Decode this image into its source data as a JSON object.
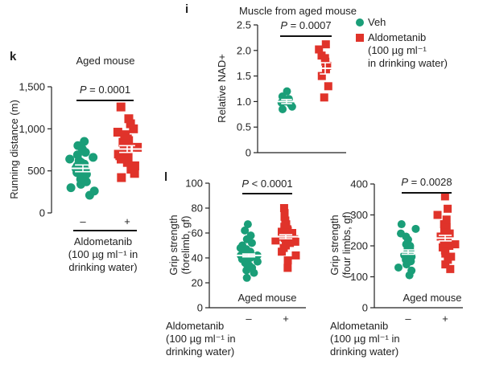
{
  "colors": {
    "veh": "#1a9e78",
    "aldo": "#e0332a",
    "axis": "#222222"
  },
  "chart_data": [
    {
      "panel_label": "k",
      "type": "scatter",
      "title": "Aged mouse",
      "ylabel": "Running distance (m)",
      "ylim": [
        0,
        1500
      ],
      "yticks": [
        0,
        500,
        1000,
        1500
      ],
      "ytick_labels": [
        "0",
        "500",
        "1,000",
        "1,500"
      ],
      "categories": [
        "–",
        "+"
      ],
      "x_title_lines": [
        "Aldometanib",
        "(100 µg ml⁻¹ in",
        "drinking water)"
      ],
      "p_text": [
        "P",
        " = 0.0001"
      ],
      "series": [
        {
          "group": "veh",
          "mean": 530,
          "sem": 40,
          "values": [
            210,
            260,
            300,
            340,
            370,
            400,
            420,
            440,
            460,
            480,
            500,
            510,
            520,
            530,
            540,
            550,
            560,
            580,
            600,
            620,
            640,
            660,
            690,
            720,
            760,
            800,
            850
          ]
        },
        {
          "group": "aldo",
          "mean": 760,
          "sem": 40,
          "values": [
            420,
            470,
            520,
            560,
            600,
            620,
            640,
            660,
            680,
            700,
            720,
            740,
            760,
            780,
            800,
            820,
            840,
            860,
            880,
            900,
            930,
            960,
            1000,
            1060,
            1120,
            1260
          ]
        }
      ]
    },
    {
      "panel_label": "i",
      "type": "scatter",
      "title": "Muscle from aged mouse",
      "ylabel": "Relative NAD+",
      "ylim": [
        0,
        2.5
      ],
      "yticks": [
        0,
        0.5,
        1.0,
        1.5,
        2.0,
        2.5
      ],
      "ytick_labels": [
        "0",
        "0.5",
        "1.0",
        "1.5",
        "2.0",
        "2.5"
      ],
      "categories": [],
      "p_text": [
        "P",
        " = 0.0007"
      ],
      "series": [
        {
          "group": "veh",
          "mean": 1.0,
          "sem": 0.04,
          "values": [
            0.85,
            0.9,
            0.95,
            0.98,
            1.0,
            1.02,
            1.05,
            1.1,
            1.2
          ]
        },
        {
          "group": "aldo",
          "mean": 1.65,
          "sem": 0.11,
          "values": [
            1.08,
            1.3,
            1.5,
            1.62,
            1.7,
            1.78,
            1.85,
            1.9,
            2.02,
            2.12
          ]
        }
      ],
      "legend": [
        {
          "group": "veh",
          "text": [
            "Veh"
          ]
        },
        {
          "group": "aldo",
          "text": [
            "Aldometanib",
            "(100 µg ml⁻¹",
            "in drinking water)"
          ]
        }
      ]
    },
    {
      "panel_label": "l",
      "type": "scatter",
      "title": "Aged mouse",
      "ylabel": [
        "Grip strength",
        "(forelimb, gf)"
      ],
      "ylim": [
        0,
        100
      ],
      "yticks": [
        0,
        20,
        40,
        60,
        80,
        100
      ],
      "ytick_labels": [
        "0",
        "20",
        "40",
        "60",
        "80",
        "100"
      ],
      "categories": [
        "–",
        "+"
      ],
      "x_title_lines": [
        "Aldometanib",
        "(100 µg ml⁻¹ in",
        "drinking water)"
      ],
      "p_text": [
        "P",
        " < 0.0001"
      ],
      "series": [
        {
          "group": "veh",
          "mean": 42,
          "sem": 1.2,
          "values": [
            24,
            28,
            30,
            32,
            34,
            35,
            36,
            37,
            38,
            39,
            40,
            40,
            41,
            42,
            42,
            43,
            44,
            45,
            46,
            47,
            48,
            50,
            52,
            55,
            58,
            62,
            67
          ]
        },
        {
          "group": "aldo",
          "mean": 57,
          "sem": 1.6,
          "values": [
            32,
            38,
            42,
            45,
            48,
            50,
            52,
            53,
            54,
            55,
            56,
            57,
            58,
            59,
            60,
            61,
            62,
            63,
            64,
            65,
            67,
            70,
            73,
            76,
            80
          ]
        }
      ]
    },
    {
      "panel_label": "",
      "type": "scatter",
      "title": "Aged mouse",
      "ylabel": [
        "Grip strength",
        "(four limbs, gf)"
      ],
      "ylim": [
        0,
        400
      ],
      "yticks": [
        0,
        100,
        200,
        300,
        400
      ],
      "ytick_labels": [
        "0",
        "100",
        "200",
        "300",
        "400"
      ],
      "categories": [
        "–",
        "+"
      ],
      "x_title_lines": [
        "Aldometanib",
        "(100 µg ml⁻¹ in",
        "drinking water)"
      ],
      "p_text": [
        "P",
        " = 0.0028"
      ],
      "series": [
        {
          "group": "veh",
          "mean": 180,
          "sem": 7,
          "values": [
            105,
            120,
            130,
            140,
            150,
            155,
            160,
            165,
            170,
            175,
            178,
            180,
            185,
            190,
            195,
            200,
            205,
            210,
            220,
            230,
            240,
            255,
            270
          ]
        },
        {
          "group": "aldo",
          "mean": 225,
          "sem": 9,
          "values": [
            125,
            140,
            155,
            165,
            175,
            185,
            195,
            200,
            205,
            210,
            215,
            220,
            225,
            230,
            235,
            240,
            245,
            250,
            260,
            270,
            285,
            300,
            320,
            360
          ]
        }
      ]
    }
  ]
}
